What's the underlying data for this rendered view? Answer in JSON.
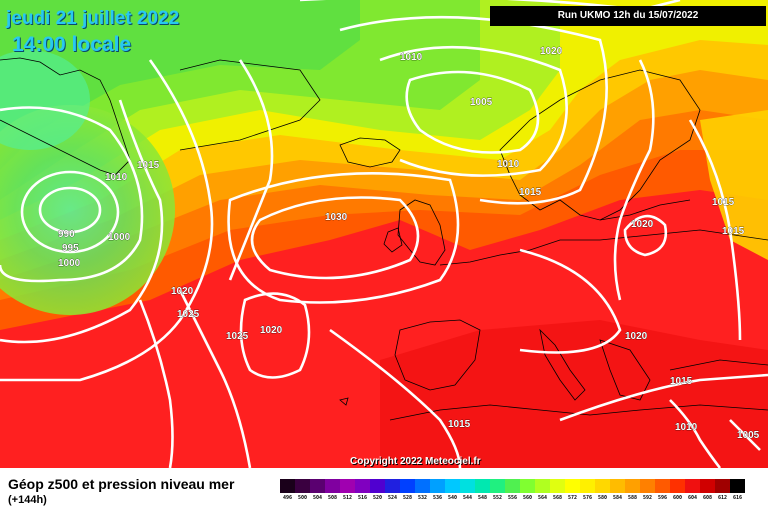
{
  "header": {
    "date_line": "jeudi 21 juillet 2022",
    "time_line": "14:00 locale",
    "run_info": "Run UKMO 12h du 15/07/2022"
  },
  "copyright": "Copyright 2022 Meteociel.fr",
  "legend": {
    "title": "Géop z500 et pression niveau mer",
    "subtitle": "(+144h)",
    "ticks": [
      "496",
      "500",
      "504",
      "508",
      "512",
      "516",
      "520",
      "524",
      "528",
      "532",
      "536",
      "540",
      "544",
      "548",
      "552",
      "556",
      "560",
      "564",
      "568",
      "572",
      "576",
      "580",
      "584",
      "588",
      "592",
      "596",
      "600",
      "604",
      "608",
      "612",
      "616"
    ],
    "colors": [
      "#1a001a",
      "#3a0040",
      "#5a0070",
      "#8000a0",
      "#a000b0",
      "#8000c0",
      "#5000d0",
      "#2020e0",
      "#0040ff",
      "#0070ff",
      "#00a0ff",
      "#00c8ff",
      "#00e0e0",
      "#00e8b0",
      "#20f080",
      "#50f050",
      "#80ff30",
      "#b0ff20",
      "#e0ff10",
      "#ffff00",
      "#fff000",
      "#ffd800",
      "#ffbc00",
      "#ffa000",
      "#ff8000",
      "#ff5a00",
      "#ff3000",
      "#f01010",
      "#d00000",
      "#a00000",
      "#000000"
    ]
  },
  "isobars": [
    {
      "label": "1020"
    },
    {
      "label": "1005"
    },
    {
      "label": "1010"
    },
    {
      "label": "1015"
    },
    {
      "label": "1015"
    },
    {
      "label": "1010"
    },
    {
      "label": "1030"
    },
    {
      "label": "990"
    },
    {
      "label": "995"
    },
    {
      "label": "1000"
    },
    {
      "label": "1000"
    },
    {
      "label": "1020"
    },
    {
      "label": "1025"
    },
    {
      "label": "1025"
    },
    {
      "label": "1020"
    },
    {
      "label": "1020"
    },
    {
      "label": "1015"
    },
    {
      "label": "1020"
    },
    {
      "label": "1015"
    },
    {
      "label": "1015"
    },
    {
      "label": "1010"
    },
    {
      "label": "1005"
    },
    {
      "label": "1015"
    },
    {
      "label": "1010"
    }
  ]
}
